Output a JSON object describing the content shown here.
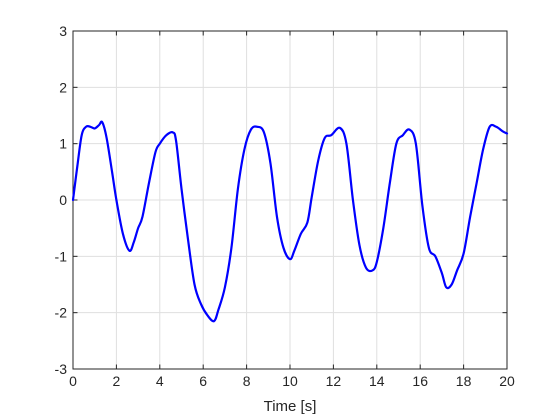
{
  "chart_data": {
    "type": "line",
    "title": "",
    "xlabel": "Time [s]",
    "ylabel": "",
    "xlim": [
      0,
      20
    ],
    "ylim": [
      -3,
      3
    ],
    "x_ticks": [
      0,
      2,
      4,
      6,
      8,
      10,
      12,
      14,
      16,
      18,
      20
    ],
    "x_tick_labels": [
      "0",
      "2",
      "4",
      "6",
      "8",
      "10",
      "12",
      "14",
      "16",
      "18",
      "20"
    ],
    "y_ticks": [
      -3,
      -2,
      -1,
      0,
      1,
      2,
      3
    ],
    "y_tick_labels": [
      "-3",
      "-2",
      "-1",
      "0",
      "1",
      "2",
      "3"
    ],
    "grid": true,
    "box": true,
    "colors": {
      "series": "#0000ff",
      "grid": "#dfdfdf",
      "axes": "#262626",
      "background": "#ffffff"
    },
    "series": [
      {
        "x": [
          0,
          0.2,
          0.4,
          0.6,
          0.8,
          1.0,
          1.2,
          1.35,
          1.55,
          1.8,
          2.0,
          2.3,
          2.6,
          2.8,
          3.0,
          3.2,
          3.5,
          3.8,
          4.0,
          4.3,
          4.6,
          4.75,
          5.0,
          5.3,
          5.6,
          5.9,
          6.2,
          6.5,
          6.7,
          7.0,
          7.3,
          7.6,
          7.9,
          8.2,
          8.5,
          8.8,
          9.1,
          9.4,
          9.7,
          10.0,
          10.2,
          10.5,
          10.8,
          11.0,
          11.3,
          11.6,
          11.9,
          12.3,
          12.6,
          12.9,
          13.2,
          13.5,
          13.8,
          14.0,
          14.3,
          14.6,
          14.9,
          15.2,
          15.5,
          15.8,
          16.1,
          16.4,
          16.7,
          17.0,
          17.2,
          17.45,
          17.7,
          18.0,
          18.3,
          18.6,
          18.9,
          19.2,
          19.5,
          19.8,
          20.0
        ],
        "y": [
          0.0,
          0.6,
          1.15,
          1.3,
          1.3,
          1.27,
          1.33,
          1.38,
          1.1,
          0.5,
          0.0,
          -0.6,
          -0.9,
          -0.75,
          -0.5,
          -0.3,
          0.3,
          0.85,
          1.0,
          1.15,
          1.2,
          1.05,
          0.2,
          -0.7,
          -1.5,
          -1.85,
          -2.05,
          -2.15,
          -1.95,
          -1.55,
          -0.85,
          0.2,
          0.9,
          1.25,
          1.3,
          1.2,
          0.65,
          -0.3,
          -0.85,
          -1.05,
          -0.9,
          -0.6,
          -0.4,
          0.05,
          0.7,
          1.1,
          1.15,
          1.28,
          1.0,
          0.0,
          -0.8,
          -1.2,
          -1.25,
          -1.1,
          -0.5,
          0.3,
          1.0,
          1.15,
          1.25,
          1.0,
          -0.1,
          -0.85,
          -1.0,
          -1.3,
          -1.55,
          -1.5,
          -1.25,
          -0.95,
          -0.3,
          0.3,
          0.9,
          1.3,
          1.3,
          1.22,
          1.18
        ]
      }
    ]
  }
}
